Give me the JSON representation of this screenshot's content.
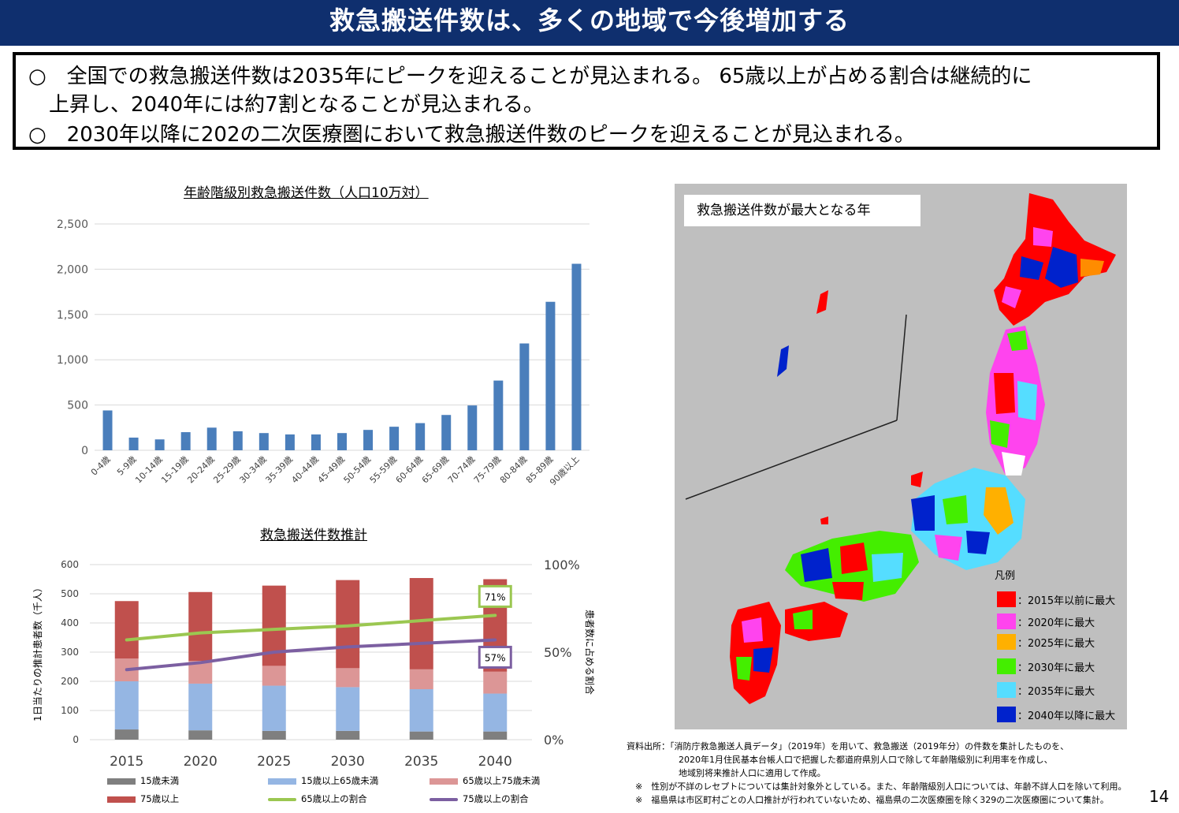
{
  "header": {
    "title": "救急搬送件数は、多くの地域で今後増加する"
  },
  "summary": {
    "lines": [
      "○　全国での救急搬送件数は2035年にピークを迎えることが見込まれる。 65歳以上が占める割合は継続的に",
      "上昇し、2040年には約7割となることが見込まれる。",
      "○　2030年以降に202の二次医療圏において救急搬送件数のピークを迎えることが見込まれる。"
    ]
  },
  "chart_data": [
    {
      "type": "bar",
      "title": "年齢階級別救急搬送件数（人口10万対）",
      "categories": [
        "0-4歳",
        "5-9歳",
        "10-14歳",
        "15-19歳",
        "20-24歳",
        "25-29歳",
        "30-34歳",
        "35-39歳",
        "40-44歳",
        "45-49歳",
        "50-54歳",
        "55-59歳",
        "60-64歳",
        "65-69歳",
        "70-74歳",
        "75-79歳",
        "80-84歳",
        "85-89歳",
        "90歳以上"
      ],
      "values": [
        440,
        140,
        120,
        200,
        250,
        210,
        190,
        175,
        175,
        190,
        225,
        260,
        300,
        390,
        495,
        770,
        1180,
        1640,
        2060
      ],
      "ylim": [
        0,
        2500
      ],
      "yticks": [
        "0",
        "500",
        "1,000",
        "1,500",
        "2,000",
        "2,500"
      ],
      "grid": true,
      "color": "#4a7ebb"
    },
    {
      "type": "bar",
      "stacked": true,
      "title": "救急搬送件数推計",
      "ylabel": "1日当たりの推計患者数（千人）",
      "y2label": "患者数に占める割合",
      "categories": [
        "2015",
        "2020",
        "2025",
        "2030",
        "2035",
        "2040"
      ],
      "ylim": [
        0,
        600
      ],
      "yticks": [
        "0",
        "100",
        "200",
        "300",
        "400",
        "500",
        "600"
      ],
      "y2ticks": [
        "0%",
        "50%",
        "100%"
      ],
      "series": [
        {
          "name": "15歳未満",
          "color": "#7f7f7f",
          "values": [
            35,
            32,
            30,
            30,
            28,
            28
          ]
        },
        {
          "name": "15歳以上65歳未満",
          "color": "#95b6e3",
          "values": [
            165,
            160,
            155,
            150,
            145,
            130
          ]
        },
        {
          "name": "65歳以上75歳未満",
          "color": "#dc9696",
          "values": [
            78,
            78,
            68,
            65,
            68,
            75
          ]
        },
        {
          "name": "75歳以上",
          "color": "#c0504d",
          "values": [
            197,
            236,
            275,
            302,
            313,
            317
          ]
        }
      ],
      "line_series": [
        {
          "name": "65歳以上の割合",
          "color": "#9bc751",
          "values": [
            0.57,
            0.61,
            0.63,
            0.65,
            0.68,
            0.71
          ]
        },
        {
          "name": "75歳以上の割合",
          "color": "#7c5fa1",
          "values": [
            0.4,
            0.44,
            0.5,
            0.53,
            0.55,
            0.57
          ]
        }
      ],
      "annotations": [
        "71%",
        "57%"
      ]
    }
  ],
  "map": {
    "label": "救急搬送件数が最大となる年",
    "legend_title": "凡例",
    "legend": [
      {
        "label": "：2015年以前に最大",
        "color": "#ff0000"
      },
      {
        "label": "：2020年に最大",
        "color": "#ff44ee"
      },
      {
        "label": "：2025年に最大",
        "color": "#ffb000"
      },
      {
        "label": "：2030年に最大",
        "color": "#44ee00"
      },
      {
        "label": "：2035年に最大",
        "color": "#55ddff"
      },
      {
        "label": "：2040年以降に最大",
        "color": "#0022cc"
      }
    ]
  },
  "source": {
    "lines": [
      "資料出所：「消防庁救急搬送人員データ」（2019年）を用いて、救急搬送（2019年分）の件数を集計したものを、",
      "　　　　　　2020年1月住民基本台帳人口で把握した都道府県別人口で除して年齢階級別に利用率を作成し、",
      "　　　　　　地域別将来推計人口に適用して作成。",
      "　※　性別が不詳のレセプトについては集計対象外としている。また、年齢階級別人口については、年齢不詳人口を除いて利用。",
      "　※　福島県は市区町村ごとの人口推計が行われていないため、福島県の二次医療圏を除く329の二次医療圏について集計。"
    ]
  },
  "page": {
    "number": "14"
  }
}
